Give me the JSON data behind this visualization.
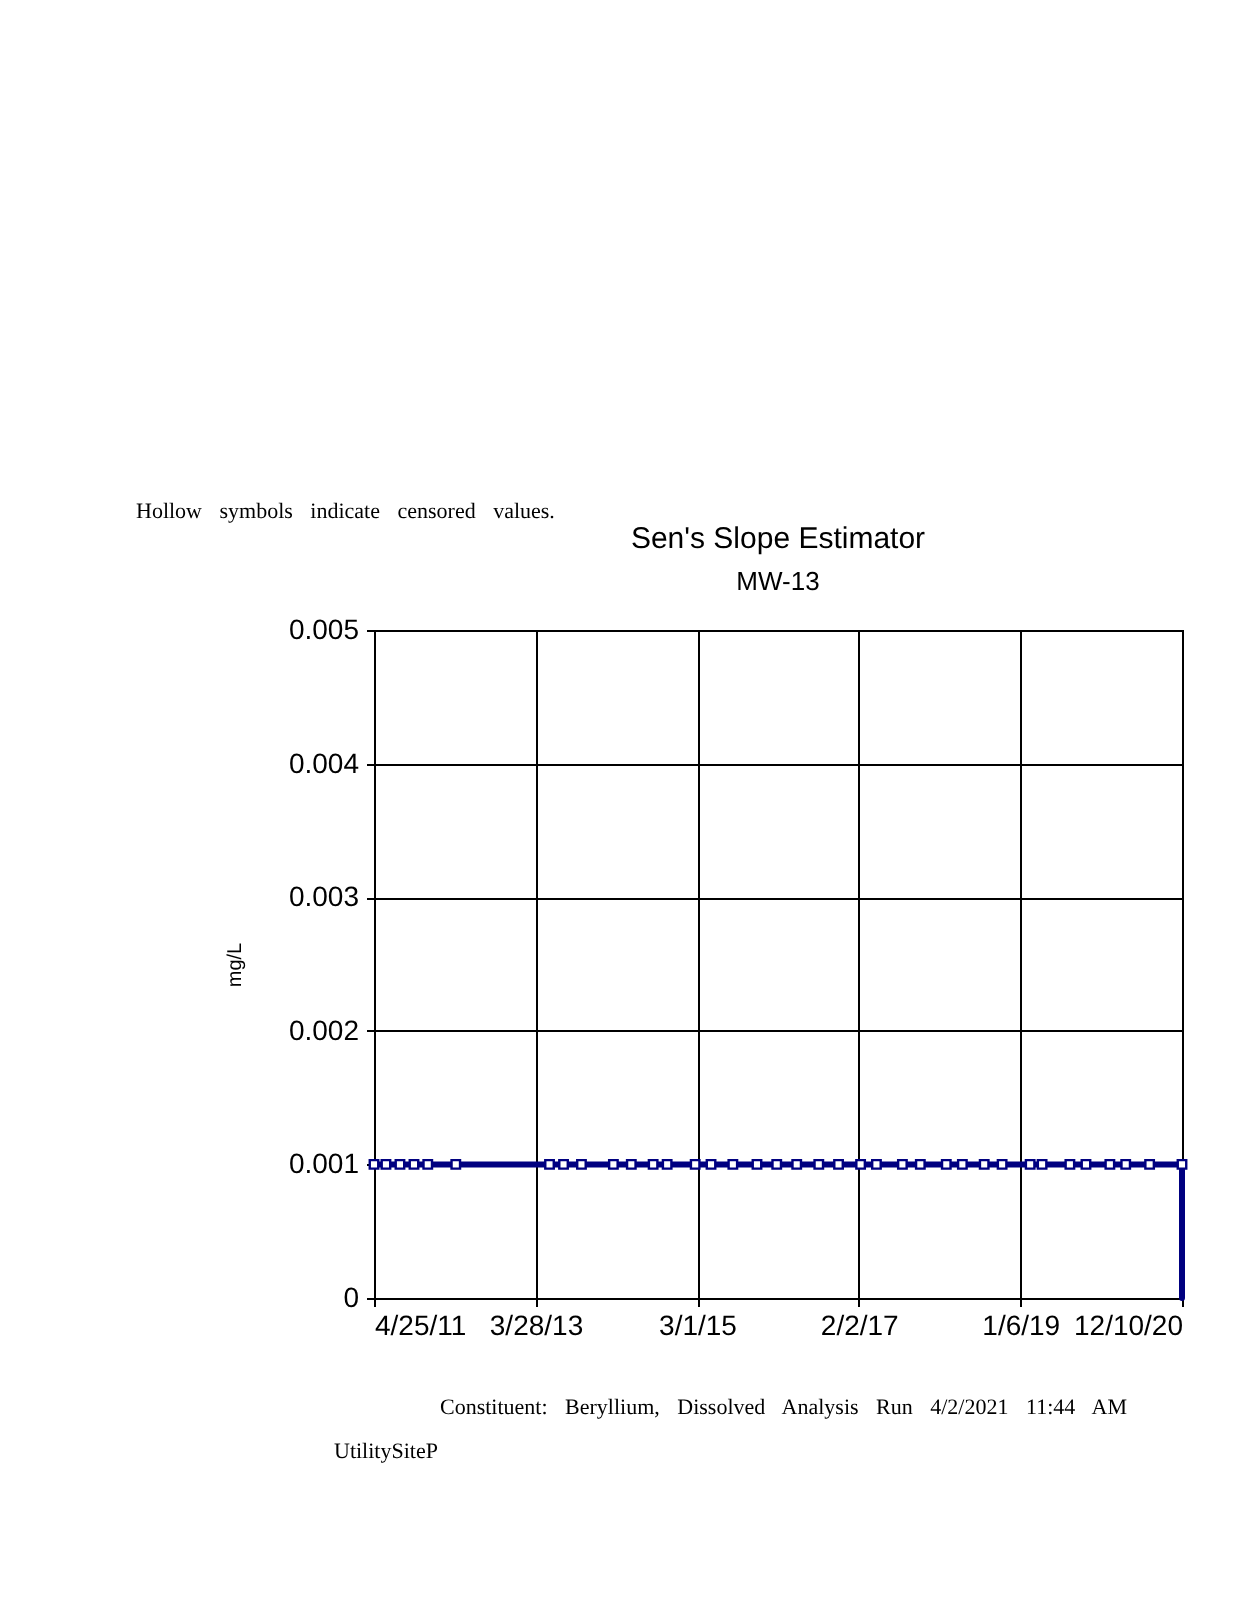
{
  "chart_data": {
    "type": "scatter",
    "title": "Sen's Slope Estimator",
    "subtitle": "MW-13",
    "ylabel": "mg/L",
    "annotations": [
      "Hollow symbols indicate censored values.",
      "Constituent: Beryllium, Dissolved Analysis Run 4/2/2021 11:44 AM",
      "UtilitySiteP"
    ],
    "xlim": [
      "2011-04-25",
      "2020-12-10"
    ],
    "xticks": [
      {
        "value": "2011-04-25",
        "label": "4/25/11"
      },
      {
        "value": "2013-03-28",
        "label": "3/28/13"
      },
      {
        "value": "2015-03-01",
        "label": "3/1/15"
      },
      {
        "value": "2017-02-02",
        "label": "2/2/17"
      },
      {
        "value": "2019-01-06",
        "label": "1/6/19"
      },
      {
        "value": "2020-12-10",
        "label": "12/10/20"
      }
    ],
    "ylim": [
      0,
      0.005
    ],
    "yticks": [
      {
        "value": 0,
        "label": "0"
      },
      {
        "value": 0.001,
        "label": "0.001"
      },
      {
        "value": 0.002,
        "label": "0.002"
      },
      {
        "value": 0.003,
        "label": "0.003"
      },
      {
        "value": 0.004,
        "label": "0.004"
      },
      {
        "value": 0.005,
        "label": "0.005"
      }
    ],
    "grid": true,
    "series": [
      {
        "type": "line",
        "color": "#000080",
        "line_style": "solid",
        "marker": "none",
        "x": [
          "2011-04-25",
          "2020-12-10",
          "2020-12-10"
        ],
        "values": [
          0.001,
          0.001,
          0
        ]
      },
      {
        "color": "#000080",
        "marker": "square",
        "x": [
          "2011-04-25",
          "2011-06-16",
          "2011-08-16",
          "2011-10-16",
          "2011-12-15",
          "2012-04-15",
          "2013-05-28",
          "2013-07-28",
          "2013-10-14",
          "2014-03-02",
          "2014-05-19",
          "2014-08-22",
          "2014-10-22",
          "2015-02-21",
          "2015-05-01",
          "2015-08-04",
          "2015-11-17",
          "2016-02-11",
          "2016-05-08",
          "2016-08-12",
          "2016-11-06",
          "2017-02-10",
          "2017-04-20",
          "2017-08-11",
          "2017-10-28",
          "2018-02-18",
          "2018-04-29",
          "2018-08-02",
          "2018-10-19",
          "2019-02-18",
          "2019-04-11",
          "2019-08-10",
          "2019-10-19",
          "2020-01-31",
          "2020-04-09",
          "2020-07-22",
          "2020-12-10"
        ],
        "values": [
          0.001,
          0.001,
          0.001,
          0.001,
          0.001,
          0.001,
          0.001,
          0.001,
          0.001,
          0.001,
          0.001,
          0.001,
          0.001,
          0.001,
          0.001,
          0.001,
          0.001,
          0.001,
          0.001,
          0.001,
          0.001,
          0.001,
          0.001,
          0.001,
          0.001,
          0.001,
          0.001,
          0.001,
          0.001,
          0.001,
          0.001,
          0.001,
          0.001,
          0.001,
          0.001,
          0.001,
          0.001
        ]
      }
    ]
  }
}
